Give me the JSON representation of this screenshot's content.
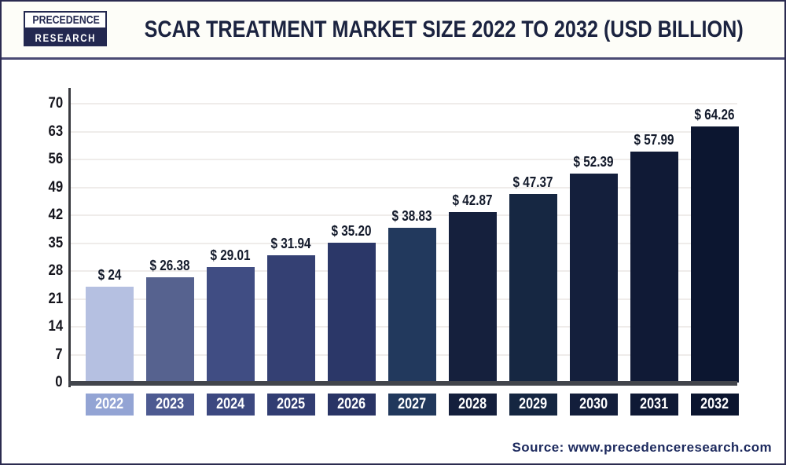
{
  "header": {
    "logo": {
      "line1": "PRECEDENCE",
      "line2": "RESEARCH"
    },
    "title": "SCAR TREATMENT MARKET SIZE 2022 TO 2032 (USD BILLION)"
  },
  "footer": {
    "source": "Source: www.precedenceresearch.com"
  },
  "chart_data": {
    "type": "bar",
    "title": "Scar Treatment Market Size 2022 to 2032 (USD Billion)",
    "categories": [
      "2022",
      "2023",
      "2024",
      "2025",
      "2026",
      "2027",
      "2028",
      "2029",
      "2030",
      "2031",
      "2032"
    ],
    "values": [
      24,
      26.38,
      29.01,
      31.94,
      35.2,
      38.83,
      42.87,
      47.37,
      52.39,
      57.99,
      64.26
    ],
    "value_labels": [
      "$ 24",
      "$ 26.38",
      "$ 29.01",
      "$ 31.94",
      "$ 35.20",
      "$ 38.83",
      "$ 42.87",
      "$ 47.37",
      "$ 52.39",
      "$ 57.99",
      "$ 64.26"
    ],
    "xlabel": "",
    "ylabel": "",
    "ylim": [
      0,
      70
    ],
    "yticks": [
      0,
      7,
      14,
      21,
      28,
      35,
      42,
      49,
      56,
      63,
      70
    ],
    "grid": true,
    "legend_position": "none",
    "bar_colors": [
      "#b5c0e1",
      "#56628f",
      "#404d83",
      "#344073",
      "#2b3768",
      "#22395d",
      "#15203d",
      "#162742",
      "#141f3c",
      "#101a36",
      "#0c1630"
    ],
    "xbox_colors": [
      "#93a4d4",
      "#4d5a91",
      "#3c4880",
      "#313d72",
      "#293465",
      "#21385c",
      "#141f3c",
      "#152641",
      "#131e3b",
      "#0f1935",
      "#0b152f"
    ],
    "xbox_text_color": "#ffffff",
    "gridline_color": "#efecea",
    "axis_color": "#3a3b40",
    "baseline_color": "#42454c",
    "accent_navy": "#232850"
  }
}
